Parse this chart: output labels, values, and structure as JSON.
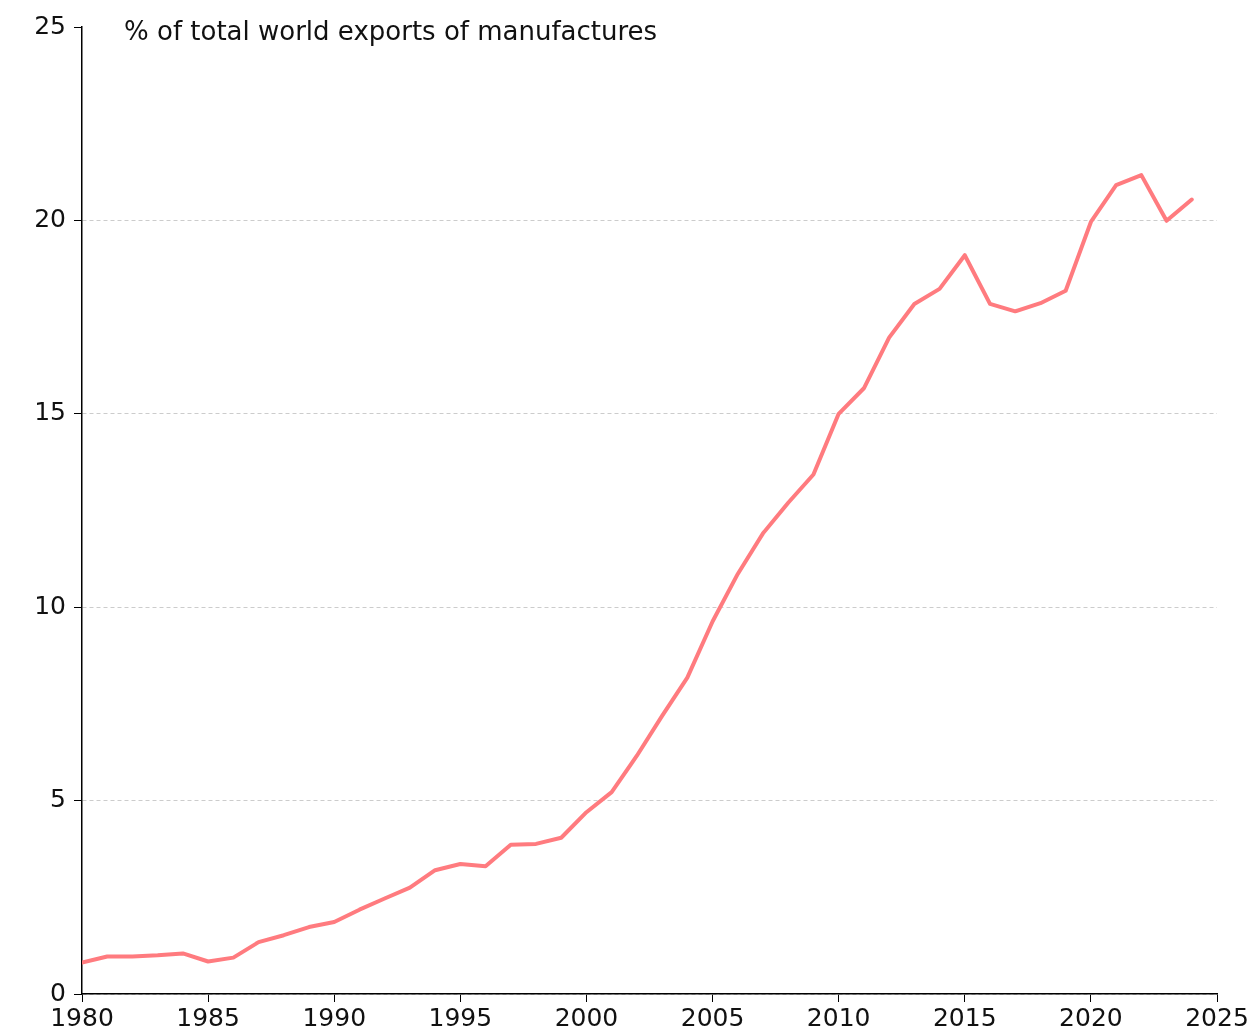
{
  "chart_data": {
    "type": "line",
    "ylabel": "% of total world exports of manufactures",
    "x": [
      1980,
      1981,
      1982,
      1983,
      1984,
      1985,
      1986,
      1987,
      1988,
      1989,
      1990,
      1991,
      1992,
      1993,
      1994,
      1995,
      1996,
      1997,
      1998,
      1999,
      2000,
      2001,
      2002,
      2003,
      2004,
      2005,
      2006,
      2007,
      2008,
      2009,
      2010,
      2011,
      2012,
      2013,
      2014,
      2015,
      2016,
      2017,
      2018,
      2019,
      2020,
      2021,
      2022,
      2023,
      2024
    ],
    "series": [
      {
        "color": "#ff7b7f",
        "values": [
          0.81,
          0.97,
          0.97,
          1.0,
          1.05,
          0.84,
          0.94,
          1.34,
          1.52,
          1.73,
          1.86,
          2.18,
          2.47,
          2.75,
          3.2,
          3.36,
          3.3,
          3.86,
          3.88,
          4.04,
          4.7,
          5.22,
          6.16,
          7.19,
          8.18,
          9.63,
          10.86,
          11.91,
          12.7,
          13.43,
          15.0,
          15.66,
          16.97,
          17.84,
          18.23,
          19.1,
          17.84,
          17.65,
          17.86,
          18.18,
          19.96,
          20.91,
          21.17,
          19.99,
          20.54
        ]
      }
    ],
    "xlim": [
      1980,
      2025
    ],
    "xticks": [
      1980,
      1985,
      1990,
      1995,
      2000,
      2005,
      2010,
      2015,
      2020,
      2025
    ],
    "ylim": [
      0,
      25
    ],
    "yticks": [
      0,
      5,
      10,
      15,
      20,
      25
    ],
    "grid": "y",
    "legend": false,
    "marker": "none",
    "line_style": "solid"
  }
}
